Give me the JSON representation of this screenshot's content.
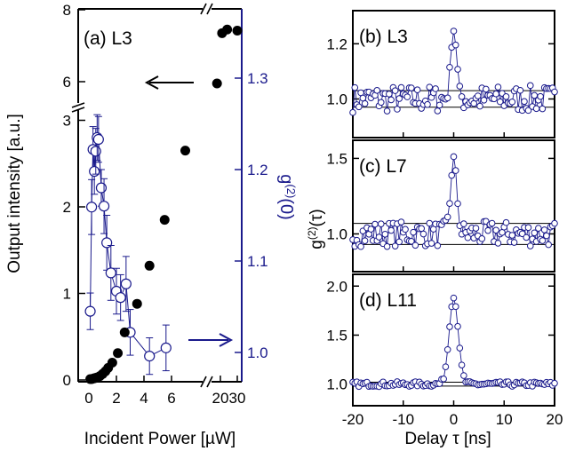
{
  "chart_data": [
    {
      "type": "scatter",
      "panel_label": "(a) L3",
      "xlabel": "Incident Power [µW]",
      "ylabel": "Output intensity [a.u.]",
      "ylabel_right": "g(2)(0)",
      "x_ticks": [
        "0",
        "2",
        "4",
        "6",
        "20",
        "30"
      ],
      "y_ticks_lower": [
        "0",
        "1",
        "2",
        "3"
      ],
      "y_ticks_upper": [
        "6",
        "8"
      ],
      "y2_ticks": [
        "1.0",
        "1.1",
        "1.2",
        "1.3"
      ],
      "x_break": "between 7 and 20",
      "y_break": "between 3 and 6",
      "colors": {
        "intensity": "#000000",
        "g2": "#1a1a8c"
      },
      "series": [
        {
          "axis": "left",
          "marker": "filled-circle",
          "points": [
            [
              0.1,
              0.01
            ],
            [
              0.2,
              0.01
            ],
            [
              0.3,
              0.015
            ],
            [
              0.4,
              0.02
            ],
            [
              0.5,
              0.025
            ],
            [
              0.6,
              0.03
            ],
            [
              0.8,
              0.045
            ],
            [
              1.0,
              0.07
            ],
            [
              1.2,
              0.1
            ],
            [
              1.4,
              0.14
            ],
            [
              1.7,
              0.2
            ],
            [
              2.1,
              0.31
            ],
            [
              2.6,
              0.55
            ],
            [
              3.5,
              0.88
            ],
            [
              4.4,
              1.32
            ],
            [
              5.5,
              1.85
            ],
            [
              7.0,
              2.65
            ],
            [
              18,
              5.95
            ],
            [
              21,
              7.35
            ],
            [
              24,
              7.45
            ],
            [
              30,
              7.42
            ]
          ]
        },
        {
          "axis": "right",
          "marker": "open-circle",
          "points": [
            [
              0.1,
              1.045,
              0.02
            ],
            [
              0.2,
              1.159,
              0.03
            ],
            [
              0.3,
              1.222,
              0.025
            ],
            [
              0.4,
              1.198,
              0.025
            ],
            [
              0.5,
              1.22,
              0.025
            ],
            [
              0.6,
              1.235,
              0.025
            ],
            [
              0.7,
              1.233,
              0.025
            ],
            [
              0.9,
              1.18,
              0.02
            ],
            [
              1.1,
              1.16,
              0.03
            ],
            [
              1.3,
              1.12,
              0.03
            ],
            [
              1.6,
              1.087,
              0.03
            ],
            [
              2.0,
              1.067,
              0.025
            ],
            [
              2.3,
              1.06,
              0.025
            ],
            [
              2.7,
              1.075,
              0.03
            ],
            [
              3.0,
              1.022,
              0.025
            ],
            [
              4.4,
              0.996,
              0.02
            ],
            [
              5.6,
              1.005,
              0.025
            ]
          ]
        }
      ],
      "arrows": [
        "left: points to intensity axis",
        "right: points to g(2)(0) axis"
      ]
    },
    {
      "type": "line",
      "panel_label": "(b) L3",
      "xlim": [
        -20,
        20
      ],
      "y_ticks": [
        "1.0",
        "1.2"
      ],
      "peak_x": 0,
      "peak_y": 1.25,
      "baseline": 1.0,
      "band": [
        0.97,
        1.03
      ]
    },
    {
      "type": "line",
      "panel_label": "(c) L7",
      "xlim": [
        -20,
        20
      ],
      "y_ticks": [
        "1.0",
        "1.5"
      ],
      "peak_x": 0,
      "peak_y": 1.5,
      "baseline": 1.0,
      "band": [
        0.93,
        1.07
      ]
    },
    {
      "type": "line",
      "panel_label": "(d) L11",
      "xlim": [
        -20,
        20
      ],
      "y_ticks": [
        "1.0",
        "1.5",
        "2.0"
      ],
      "x_ticks": [
        "-20",
        "-10",
        "0",
        "10",
        "20"
      ],
      "peak_x": 0,
      "peak_y": 1.88,
      "baseline": 1.0,
      "band": [
        0.98,
        1.02
      ]
    }
  ],
  "right_ylabel": "g(2)(τ)",
  "right_xlabel": "Delay τ [ns]"
}
